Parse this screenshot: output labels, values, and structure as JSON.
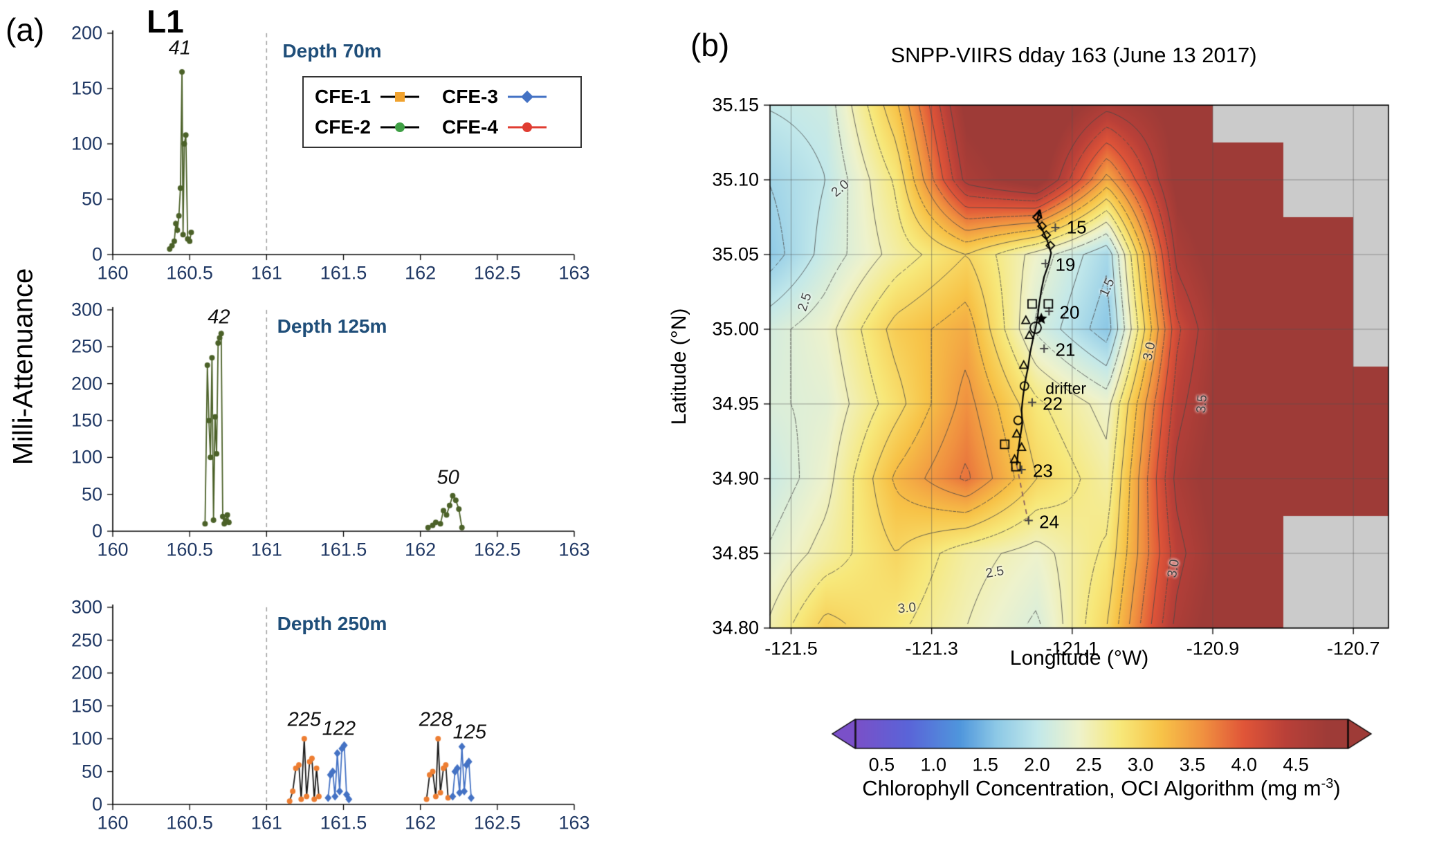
{
  "panel_a": {
    "label": "(a)",
    "title": "L1",
    "y_axis_title": "Milli-Attenuance",
    "legend": {
      "items": [
        {
          "label": "CFE-1",
          "marker": "square",
          "marker_color": "#F0A22E",
          "line_color": "#000000"
        },
        {
          "label": "CFE-3",
          "marker": "diamond",
          "marker_color": "#4472C4",
          "line_color": "#4472C4"
        },
        {
          "label": "CFE-2",
          "marker": "circle",
          "marker_color": "#3FA045",
          "line_color": "#000000"
        },
        {
          "label": "CFE-4",
          "marker": "circle",
          "marker_color": "#E03C31",
          "line_color": "#E03C31"
        }
      ]
    }
  },
  "panel_b": {
    "label": "(b)",
    "title": "SNPP-VIIRS dday 163 (June 13 2017)",
    "x_axis_title": "Longitude (°W)",
    "y_axis_title": "Latitude (°N)",
    "colorbar": {
      "caption_prefix": "Chlorophyll Concentration, OCI Algorithm (mg m",
      "caption_sup": "-3",
      "caption_suffix": ")",
      "range": [
        0.25,
        5.0
      ],
      "ticks": [
        {
          "v": 0.5,
          "label": "0.5"
        },
        {
          "v": 1.0,
          "label": "1.0"
        },
        {
          "v": 1.5,
          "label": "1.5"
        },
        {
          "v": 2.0,
          "label": "2.0"
        },
        {
          "v": 2.5,
          "label": "2.5"
        },
        {
          "v": 3.0,
          "label": "3.0"
        },
        {
          "v": 3.5,
          "label": "3.5"
        },
        {
          "v": 4.0,
          "label": "4.0"
        },
        {
          "v": 4.5,
          "label": "4.5"
        }
      ]
    }
  },
  "chart_data": [
    {
      "id": "depth-70m",
      "type": "line",
      "title": "Depth 70m",
      "xlim": [
        160,
        163
      ],
      "ylim": [
        0,
        200
      ],
      "xticks": [
        160,
        160.5,
        161,
        161.5,
        162,
        162.5,
        163
      ],
      "xtick_labels": [
        "160",
        "160.5",
        "161",
        "161.5",
        "162",
        "162.5",
        "163"
      ],
      "yticks": [
        0,
        50,
        100,
        150,
        200
      ],
      "ytick_labels": [
        "0",
        "50",
        "100",
        "150",
        "200"
      ],
      "vline": 161,
      "series": [
        {
          "name": "CFE-2",
          "line_color": "#4b6128",
          "marker": "circle",
          "marker_color": "#4b6128",
          "x": [
            160.37,
            160.385,
            160.4,
            160.41,
            160.42,
            160.43,
            160.44,
            160.45,
            160.457,
            160.465,
            160.475,
            160.487,
            160.5,
            160.51
          ],
          "y": [
            5,
            8,
            12,
            28,
            22,
            35,
            60,
            165,
            18,
            100,
            108,
            14,
            12,
            20
          ]
        }
      ],
      "annotations": [
        {
          "text": "41",
          "x": 160.435,
          "y": 186
        }
      ]
    },
    {
      "id": "depth-125m",
      "type": "line",
      "title": "Depth 125m",
      "xlim": [
        160,
        163
      ],
      "ylim": [
        0,
        300
      ],
      "xticks": [
        160,
        160.5,
        161,
        161.5,
        162,
        162.5,
        163
      ],
      "xtick_labels": [
        "160",
        "160.5",
        "161",
        "161.5",
        "162",
        "162.5",
        "163"
      ],
      "yticks": [
        0,
        50,
        100,
        150,
        200,
        250,
        300
      ],
      "ytick_labels": [
        "0",
        "50",
        "100",
        "150",
        "200",
        "250",
        "300"
      ],
      "vline": 161,
      "series": [
        {
          "name": "CFE-2",
          "line_color": "#4b6128",
          "marker": "circle",
          "marker_color": "#4b6128",
          "x": [
            160.6,
            160.615,
            160.625,
            160.635,
            160.645,
            160.655,
            160.665,
            160.675,
            160.685,
            160.695,
            160.705,
            160.715,
            160.725,
            160.735,
            160.745,
            160.755,
            null,
            162.05,
            162.08,
            162.1,
            162.13,
            162.15,
            162.17,
            162.19,
            162.21,
            162.23,
            162.25,
            162.27
          ],
          "y": [
            10,
            225,
            150,
            100,
            235,
            15,
            155,
            105,
            255,
            262,
            268,
            20,
            10,
            14,
            22,
            12,
            null,
            5,
            8,
            12,
            10,
            28,
            22,
            35,
            48,
            42,
            30,
            5
          ]
        }
      ],
      "annotations": [
        {
          "text": "42",
          "x": 160.69,
          "y": 290
        },
        {
          "text": "50",
          "x": 162.18,
          "y": 72
        }
      ]
    },
    {
      "id": "depth-250m",
      "type": "line",
      "title": "Depth 250m",
      "xlim": [
        160,
        163
      ],
      "ylim": [
        0,
        300
      ],
      "xticks": [
        160,
        160.5,
        161,
        161.5,
        162,
        162.5,
        163
      ],
      "xtick_labels": [
        "160",
        "160.5",
        "161",
        "161.5",
        "162",
        "162.5",
        "163"
      ],
      "yticks": [
        0,
        50,
        100,
        150,
        200,
        250,
        300
      ],
      "ytick_labels": [
        "0",
        "50",
        "100",
        "150",
        "200",
        "250",
        "300"
      ],
      "vline": 161,
      "series": [
        {
          "name": "CFE-1",
          "line_color": "#1a1a1a",
          "marker": "circle",
          "marker_color": "#ED7D31",
          "x": [
            161.15,
            161.17,
            161.19,
            161.21,
            161.225,
            161.245,
            161.26,
            161.28,
            161.295,
            161.31,
            161.325,
            161.34,
            null,
            162.04,
            162.06,
            162.08,
            162.1,
            162.115,
            162.13,
            162.15,
            162.165,
            162.18
          ],
          "y": [
            5,
            20,
            55,
            60,
            8,
            100,
            12,
            65,
            70,
            8,
            55,
            12,
            null,
            8,
            45,
            50,
            12,
            100,
            18,
            55,
            60,
            10
          ]
        },
        {
          "name": "CFE-3",
          "line_color": "#4472C4",
          "marker": "diamond",
          "marker_color": "#4472C4",
          "x": [
            161.4,
            161.415,
            161.43,
            161.445,
            161.46,
            161.475,
            161.49,
            161.505,
            161.52,
            161.535,
            null,
            162.21,
            162.225,
            162.24,
            162.255,
            162.27,
            162.285,
            162.3,
            162.315,
            162.33
          ],
          "y": [
            10,
            45,
            50,
            12,
            78,
            20,
            85,
            90,
            15,
            8,
            null,
            12,
            50,
            55,
            18,
            88,
            20,
            60,
            65,
            10
          ]
        }
      ],
      "annotations": [
        {
          "text": "225",
          "x": 161.245,
          "y": 128
        },
        {
          "text": "122",
          "x": 161.47,
          "y": 115
        },
        {
          "text": "228",
          "x": 162.1,
          "y": 128
        },
        {
          "text": "125",
          "x": 162.32,
          "y": 110
        }
      ]
    },
    {
      "id": "chl-map",
      "type": "heatmap",
      "title": "SNPP-VIIRS dday 163 (June 13 2017)",
      "xlabel": "Longitude (°W)",
      "ylabel": "Latitude (°N)",
      "lon_range": [
        -121.53,
        -120.65
      ],
      "lat_range": [
        34.8,
        35.15
      ],
      "xticks": [
        -121.5,
        -121.3,
        -121.1,
        -120.9,
        -120.7
      ],
      "xtick_labels": [
        "-121.5",
        "-121.3",
        "-121.1",
        "-120.9",
        "-120.7"
      ],
      "yticks": [
        35.15,
        35.1,
        35.05,
        35.0,
        34.95,
        34.9,
        34.85,
        34.8
      ],
      "ytick_labels": [
        "35.15",
        "35.10",
        "35.05",
        "35.00",
        "34.95",
        "34.90",
        "34.85",
        "34.80"
      ],
      "grid_lon": [
        -121.55,
        -121.45,
        -121.35,
        -121.25,
        -121.15,
        -121.05,
        -120.95,
        -120.85,
        -120.75,
        -120.65
      ],
      "grid_lat": [
        35.15,
        35.1,
        35.05,
        35.0,
        34.95,
        34.9,
        34.85,
        34.8
      ],
      "values": [
        [
          2.0,
          2.1,
          3.2,
          4.9,
          5.2,
          4.6,
          4.9,
          null,
          null,
          null
        ],
        [
          1.7,
          2.0,
          2.8,
          4.6,
          5.0,
          3.4,
          4.9,
          5.2,
          null,
          null
        ],
        [
          1.5,
          2.1,
          2.6,
          3.0,
          2.4,
          1.8,
          4.6,
          5.2,
          5.2,
          null
        ],
        [
          2.1,
          2.4,
          3.1,
          3.4,
          2.2,
          1.6,
          4.2,
          5.2,
          5.2,
          null
        ],
        [
          2.2,
          2.3,
          2.9,
          3.6,
          2.8,
          2.4,
          4.4,
          5.2,
          5.2,
          5.2
        ],
        [
          2.0,
          2.4,
          3.3,
          3.8,
          3.0,
          2.6,
          4.6,
          5.2,
          5.2,
          5.2
        ],
        [
          2.2,
          2.6,
          3.0,
          2.6,
          2.4,
          2.8,
          4.4,
          5.2,
          null,
          null
        ],
        [
          2.4,
          3.1,
          2.8,
          2.5,
          2.2,
          3.0,
          4.6,
          5.2,
          null,
          null
        ]
      ],
      "fill_value": 5.2,
      "no_data_color": "#cbcbcb",
      "colormap": [
        {
          "v": 0.25,
          "c": "#7a50c8"
        },
        {
          "v": 0.75,
          "c": "#5a64d8"
        },
        {
          "v": 1.25,
          "c": "#4f96dc"
        },
        {
          "v": 1.6,
          "c": "#8cc8e6"
        },
        {
          "v": 2.0,
          "c": "#c2e8ea"
        },
        {
          "v": 2.4,
          "c": "#eef2cc"
        },
        {
          "v": 2.8,
          "c": "#f7e87a"
        },
        {
          "v": 3.2,
          "c": "#f7c348"
        },
        {
          "v": 3.6,
          "c": "#f09140"
        },
        {
          "v": 4.0,
          "c": "#e05538"
        },
        {
          "v": 4.4,
          "c": "#b94038"
        },
        {
          "v": 4.8,
          "c": "#9e3b37"
        },
        {
          "v": 5.3,
          "c": "#9e3b37"
        }
      ],
      "contour_levels_solid": [
        1.5,
        2.0,
        2.5,
        3.0,
        3.5,
        4.0,
        4.5
      ],
      "contour_levels_dashed": [
        1.75,
        2.25,
        2.75,
        3.25,
        3.75,
        4.25
      ],
      "contour_labels": [
        {
          "text": "2.0",
          "lon": -121.43,
          "lat": 35.094,
          "rot": -40
        },
        {
          "text": "2.5",
          "lon": -121.48,
          "lat": 35.018,
          "rot": -72
        },
        {
          "text": "1.5",
          "lon": -121.05,
          "lat": 35.028,
          "rot": -65
        },
        {
          "text": "3.0",
          "lon": -120.99,
          "lat": 34.985,
          "rot": -78
        },
        {
          "text": "2.5",
          "lon": -121.21,
          "lat": 34.837,
          "rot": -10
        },
        {
          "text": "3.0",
          "lon": -121.335,
          "lat": 34.813,
          "rot": -5
        },
        {
          "text": "3.0",
          "lon": -120.955,
          "lat": 34.84,
          "rot": -80
        },
        {
          "text": "3.5",
          "lon": -120.915,
          "lat": 34.95,
          "rot": -85
        }
      ],
      "track": {
        "line": [
          [
            -121.146,
            35.08
          ],
          [
            -121.15,
            35.073
          ],
          [
            -121.143,
            35.067
          ],
          [
            -121.136,
            35.06
          ],
          [
            -121.13,
            35.051
          ],
          [
            -121.134,
            35.043
          ],
          [
            -121.14,
            35.035
          ],
          [
            -121.144,
            35.026
          ],
          [
            -121.147,
            35.017
          ],
          [
            -121.149,
            35.009
          ],
          [
            -121.152,
            35.001
          ],
          [
            -121.156,
            34.993
          ],
          [
            -121.16,
            34.984
          ],
          [
            -121.163,
            34.974
          ],
          [
            -121.167,
            34.965
          ],
          [
            -121.17,
            34.955
          ],
          [
            -121.172,
            34.946
          ],
          [
            -121.171,
            34.937
          ],
          [
            -121.174,
            34.928
          ],
          [
            -121.177,
            34.918
          ],
          [
            -121.179,
            34.909
          ]
        ],
        "dashed": [
          [
            -121.179,
            34.909
          ],
          [
            -121.17,
            34.888
          ],
          [
            -121.163,
            34.872
          ]
        ],
        "markers": [
          {
            "type": "diamond",
            "lon": -121.15,
            "lat": 35.075
          },
          {
            "type": "diamond",
            "lon": -121.143,
            "lat": 35.069
          },
          {
            "type": "diamond",
            "lon": -121.137,
            "lat": 35.063
          },
          {
            "type": "diamond",
            "lon": -121.131,
            "lat": 35.056
          },
          {
            "type": "plus",
            "lon": -121.124,
            "lat": 35.068
          },
          {
            "type": "plus",
            "lon": -121.138,
            "lat": 35.044
          },
          {
            "type": "plus",
            "lon": -121.133,
            "lat": 35.012
          },
          {
            "type": "plus",
            "lon": -121.14,
            "lat": 34.987
          },
          {
            "type": "plus",
            "lon": -121.157,
            "lat": 34.951
          },
          {
            "type": "plus",
            "lon": -121.172,
            "lat": 34.906
          },
          {
            "type": "plus",
            "lon": -121.162,
            "lat": 34.872
          },
          {
            "type": "square",
            "lon": -121.157,
            "lat": 35.017
          },
          {
            "type": "square",
            "lon": -121.134,
            "lat": 35.017
          },
          {
            "type": "square",
            "lon": -121.196,
            "lat": 34.923
          },
          {
            "type": "square",
            "lon": -121.18,
            "lat": 34.908
          },
          {
            "type": "circle",
            "lon": -121.152,
            "lat": 35.001,
            "s": 8
          },
          {
            "type": "circle",
            "lon": -121.168,
            "lat": 34.962
          },
          {
            "type": "circle",
            "lon": -121.177,
            "lat": 34.939
          },
          {
            "type": "triangle",
            "lon": -121.166,
            "lat": 35.006
          },
          {
            "type": "triangle",
            "lon": -121.161,
            "lat": 34.996
          },
          {
            "type": "triangle",
            "lon": -121.169,
            "lat": 34.976
          },
          {
            "type": "triangle",
            "lon": -121.179,
            "lat": 34.93
          },
          {
            "type": "triangle",
            "lon": -121.172,
            "lat": 34.921
          },
          {
            "type": "triangle",
            "lon": -121.182,
            "lat": 34.913
          },
          {
            "type": "star",
            "lon": -121.144,
            "lat": 35.007,
            "s": 9
          }
        ],
        "point_labels": [
          {
            "text": "15",
            "lon": -121.108,
            "lat": 35.068
          },
          {
            "text": "19",
            "lon": -121.124,
            "lat": 35.043
          },
          {
            "text": "20",
            "lon": -121.118,
            "lat": 35.011
          },
          {
            "text": "21",
            "lon": -121.124,
            "lat": 34.986
          },
          {
            "text": "drifter",
            "lon": -121.138,
            "lat": 34.96
          },
          {
            "text": "22",
            "lon": -121.142,
            "lat": 34.95
          },
          {
            "text": "23",
            "lon": -121.156,
            "lat": 34.905
          },
          {
            "text": "24",
            "lon": -121.147,
            "lat": 34.871
          }
        ]
      }
    }
  ]
}
